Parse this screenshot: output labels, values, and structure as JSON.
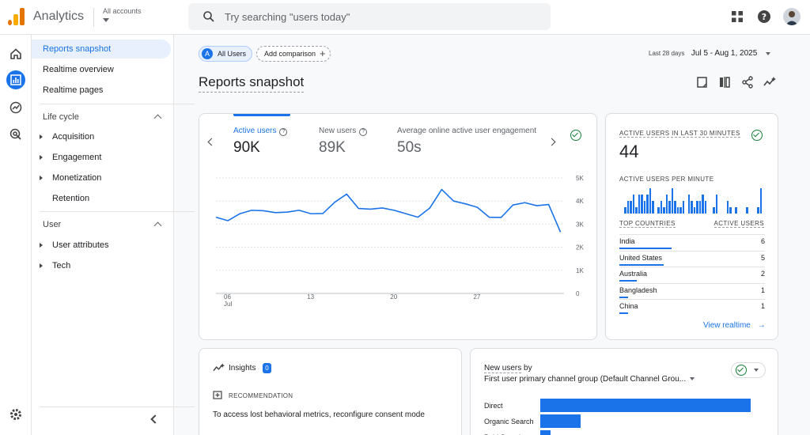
{
  "app": {
    "title": "Analytics",
    "accounts_label": "All accounts"
  },
  "search": {
    "placeholder": "Try searching \"users today\""
  },
  "colors": {
    "accent": "#1a73e8",
    "logo_orange": "#f9ab00",
    "logo_dark": "#e37400",
    "success": "#188038"
  },
  "icons": {
    "top": [
      "apps-grid-icon",
      "help-icon",
      "avatar"
    ],
    "rail": [
      "home-icon",
      "reports-icon",
      "explore-icon",
      "advertising-icon",
      "settings-icon"
    ],
    "tools": [
      "edit-icon",
      "compare-icon",
      "share-icon",
      "insights-icon"
    ]
  },
  "nav": {
    "top_items": [
      {
        "label": "Reports snapshot",
        "active": true
      },
      {
        "label": "Realtime overview"
      },
      {
        "label": "Realtime pages"
      }
    ],
    "sections": [
      {
        "title": "Life cycle",
        "items": [
          "Acquisition",
          "Engagement",
          "Monetization",
          "Retention"
        ]
      },
      {
        "title": "User",
        "items": [
          "User attributes",
          "Tech"
        ]
      }
    ]
  },
  "filters": {
    "all_users_initial": "A",
    "all_users": "All Users",
    "add_comparison": "Add comparison"
  },
  "date_range": {
    "preset": "Last 28 days",
    "range": "Jul 5 - Aug 1, 2025"
  },
  "page": {
    "title": "Reports snapshot"
  },
  "metrics": [
    {
      "label": "Active users",
      "value": "90K",
      "selected": true
    },
    {
      "label": "New users",
      "value": "89K"
    },
    {
      "label": "Average online active user engagement",
      "value": "50s"
    }
  ],
  "chart_data": {
    "type": "line",
    "title": "",
    "x_tick_labels": [
      "06",
      "13",
      "20",
      "27"
    ],
    "x_month_label": "Jul",
    "y_tick_labels": [
      "5K",
      "4K",
      "3K",
      "2K",
      "1K",
      "0"
    ],
    "ylim": [
      0,
      5000
    ],
    "series": [
      {
        "values": [
          3300,
          3150,
          3450,
          3600,
          3580,
          3500,
          3520,
          3600,
          3450,
          3460,
          3950,
          4300,
          3680,
          3650,
          3700,
          3600,
          3450,
          3300,
          3700,
          4500,
          4000,
          3880,
          3730,
          3300,
          3290,
          3830,
          3930,
          3800,
          3850,
          2650
        ]
      }
    ]
  },
  "realtime": {
    "title": "ACTIVE USERS IN LAST 30 MINUTES",
    "value": "44",
    "per_minute_label": "ACTIVE USERS PER MINUTE",
    "per_minute": [
      1,
      2,
      2,
      3,
      1,
      3,
      3,
      2,
      3,
      4,
      2,
      0,
      1,
      2,
      1,
      3,
      2,
      4,
      2,
      1,
      1,
      2,
      0,
      3,
      2,
      1,
      2,
      2,
      3,
      2,
      0,
      0,
      1,
      3,
      0,
      0,
      0,
      2,
      1,
      0,
      1,
      0,
      0,
      0,
      1,
      0,
      0,
      0,
      1,
      4
    ],
    "col_country": "TOP COUNTRIES",
    "col_users": "ACTIVE USERS",
    "countries": [
      {
        "name": "India",
        "users": "6",
        "share": 1.0
      },
      {
        "name": "United States",
        "users": "5",
        "share": 0.85
      },
      {
        "name": "Australia",
        "users": "2",
        "share": 0.34
      },
      {
        "name": "Bangladesh",
        "users": "1",
        "share": 0.17
      },
      {
        "name": "China",
        "users": "1",
        "share": 0.17
      }
    ],
    "link": "View realtime"
  },
  "insights": {
    "title": "Insights",
    "count": "0",
    "recommendation_label": "RECOMMENDATION",
    "text": "To access lost behavioral metrics, reconfigure consent mode"
  },
  "new_users": {
    "title_link": "New users",
    "title_by": " by",
    "dimension": "First user primary channel group (Default Channel Grou...",
    "channels": [
      {
        "name": "Direct",
        "share": 1.0
      },
      {
        "name": "Organic Search",
        "share": 0.19
      },
      {
        "name": "Paid Search",
        "share": 0.05
      }
    ]
  }
}
